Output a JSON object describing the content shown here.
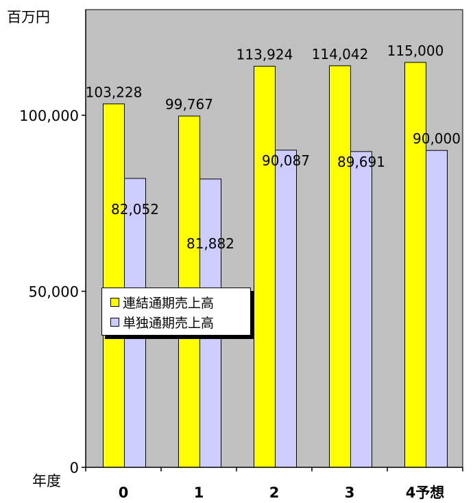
{
  "chart_data": {
    "type": "bar",
    "y_unit_label": "百万円",
    "x_unit_label": "年度",
    "categories": [
      "0",
      "1",
      "2",
      "3",
      "4予想"
    ],
    "ylim": [
      0,
      130000
    ],
    "yticks": [
      {
        "value": 0,
        "label": "0"
      },
      {
        "value": 50000,
        "label": "50,000"
      },
      {
        "value": 100000,
        "label": "100,000"
      }
    ],
    "grid": false,
    "legend_position": "left-middle",
    "series": [
      {
        "name": "連結通期売上高",
        "color": "#ffff00",
        "values": [
          103228,
          99767,
          113924,
          114042,
          115000
        ],
        "labels": [
          "103,228",
          "99,767",
          "113,924",
          "114,042",
          "115,000"
        ]
      },
      {
        "name": "単独通期売上高",
        "color": "#ccccff",
        "values": [
          82052,
          81882,
          90087,
          89691,
          90000
        ],
        "labels": [
          "82,052",
          "81,882",
          "90,087",
          "89,691",
          "90,000"
        ]
      }
    ],
    "plot_background": "#c0c0c0"
  }
}
